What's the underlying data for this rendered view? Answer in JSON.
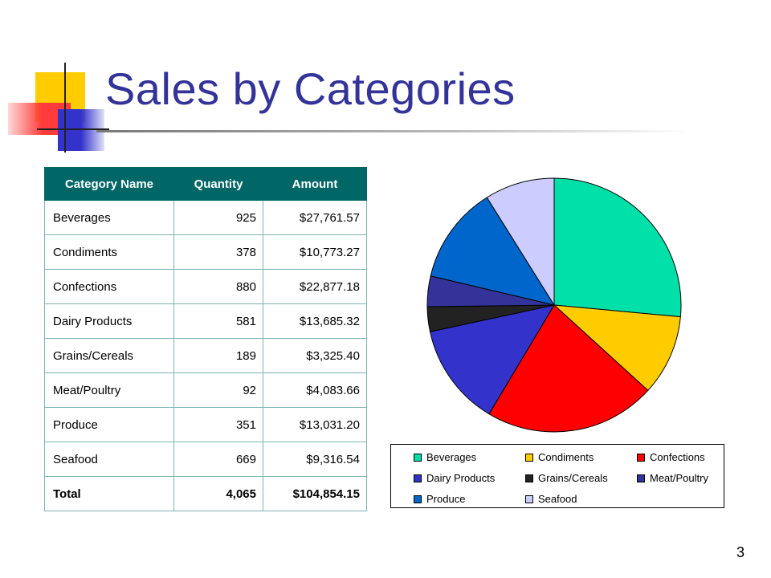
{
  "slide": {
    "title": "Sales by Categories",
    "page_number": "3"
  },
  "table": {
    "headers": [
      "Category Name",
      "Quantity",
      "Amount"
    ],
    "rows": [
      [
        "Beverages",
        "925",
        "$27,761.57"
      ],
      [
        "Condiments",
        "378",
        "$10,773.27"
      ],
      [
        "Confections",
        "880",
        "$22,877.18"
      ],
      [
        "Dairy Products",
        "581",
        "$13,685.32"
      ],
      [
        "Grains/Cereals",
        "189",
        "$3,325.40"
      ],
      [
        "Meat/Poultry",
        "92",
        "$4,083.66"
      ],
      [
        "Produce",
        "351",
        "$13,031.20"
      ],
      [
        "Seafood",
        "669",
        "$9,316.54"
      ],
      [
        "Total",
        "4,065",
        "$104,854.15"
      ]
    ]
  },
  "chart_data": {
    "type": "pie",
    "title": "",
    "legend_position": "bottom",
    "categories": [
      "Beverages",
      "Condiments",
      "Confections",
      "Dairy Products",
      "Grains/Cereals",
      "Meat/Poultry",
      "Produce",
      "Seafood"
    ],
    "values": [
      27761.57,
      10773.27,
      22877.18,
      13685.32,
      3325.4,
      4083.66,
      13031.2,
      9316.54
    ],
    "colors": [
      "#00e0a8",
      "#ffcc00",
      "#ff0000",
      "#3333cc",
      "#222222",
      "#333399",
      "#0066cc",
      "#ccccff"
    ]
  }
}
